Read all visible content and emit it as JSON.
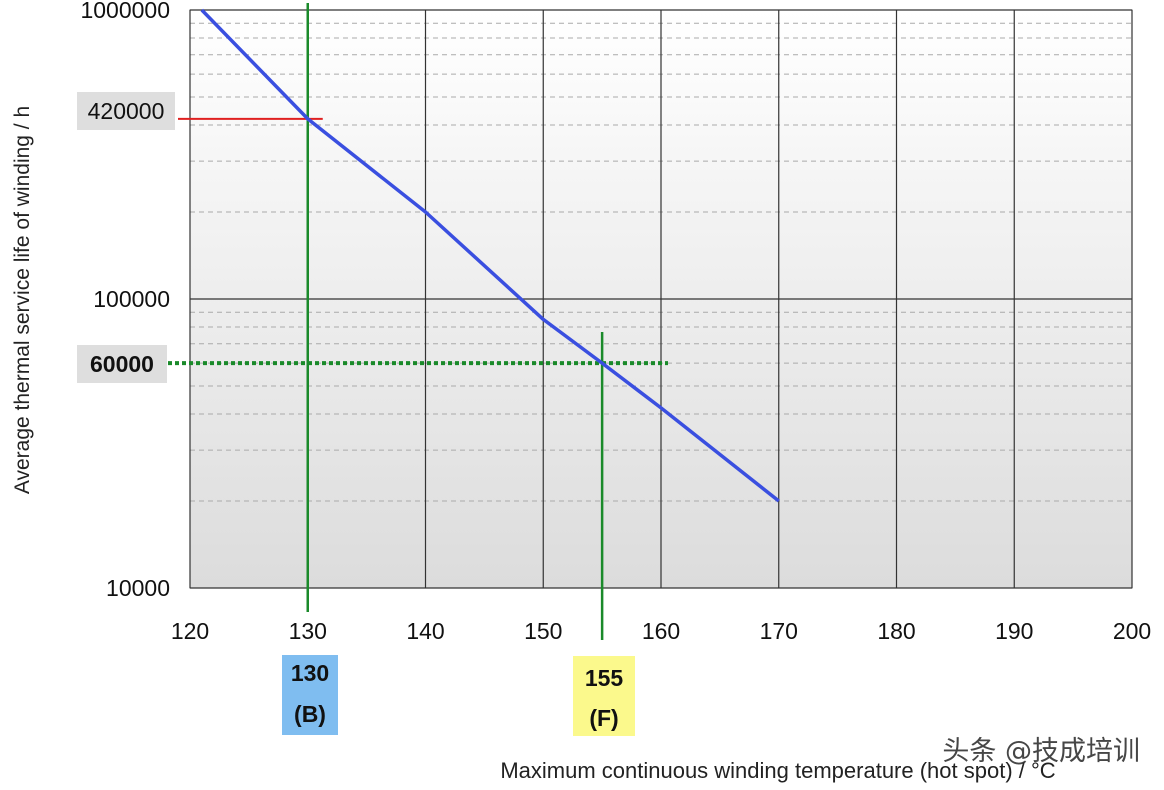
{
  "chart_data": {
    "type": "line",
    "title": "",
    "xlabel": "Maximum continuous winding temperature (hot spot) / °C",
    "ylabel": "Average thermal service life of winding / h",
    "xlim": [
      120,
      200
    ],
    "ylim": [
      10000,
      1000000
    ],
    "yscale": "log",
    "x_ticks": [
      "120",
      "130",
      "140",
      "150",
      "160",
      "170",
      "180",
      "190",
      "200"
    ],
    "y_ticks": [
      "10000",
      "100000",
      "1000000"
    ],
    "series": [
      {
        "name": "Thermal service life",
        "color": "#3a4fe0",
        "x": [
          121,
          130,
          140,
          150,
          155,
          160,
          170
        ],
        "y": [
          1000000,
          420000,
          200000,
          85000,
          60000,
          42000,
          20000
        ]
      }
    ],
    "annotations": {
      "red_reference": {
        "label": "420000",
        "y": 420000,
        "x": 130,
        "color": "#e02020"
      },
      "green_reference": {
        "label": "60000",
        "y": 60000,
        "x": 155,
        "color": "#1a8a2a"
      },
      "class_b": {
        "value": "130",
        "class": "(B)",
        "x": 130,
        "color": "#7fbdf0"
      },
      "class_f": {
        "value": "155",
        "class": "(F)",
        "x": 155,
        "color": "#fbf98c"
      }
    }
  },
  "watermark": "头条 @技成培训"
}
